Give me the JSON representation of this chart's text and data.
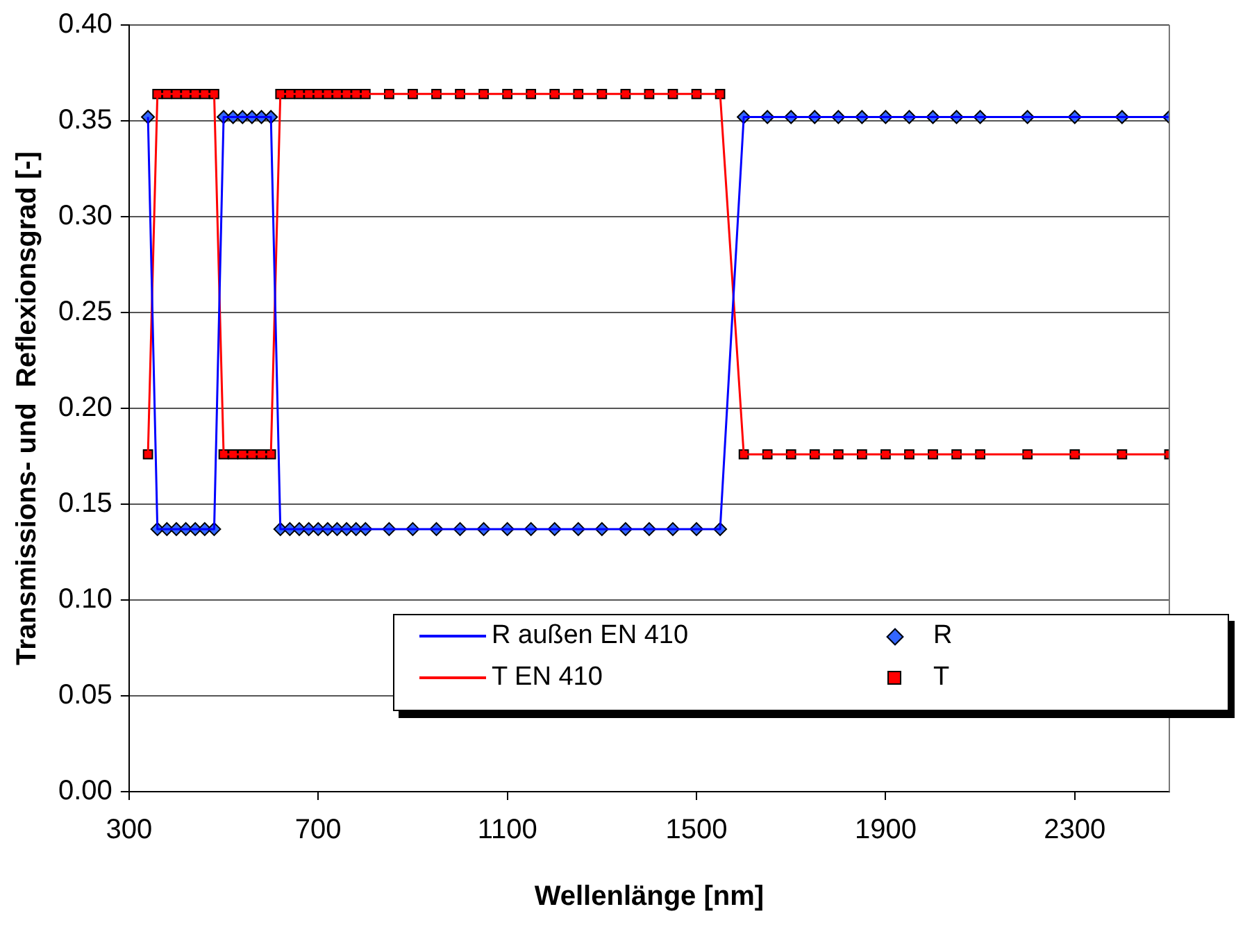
{
  "chart_data": {
    "type": "line",
    "xlabel": "Wellenlänge [nm]",
    "ylabel": "Transmissions- und  Reflexionsgrad [-]",
    "x": [
      340,
      360,
      380,
      400,
      420,
      440,
      460,
      480,
      500,
      520,
      540,
      560,
      580,
      600,
      620,
      640,
      660,
      680,
      700,
      720,
      740,
      760,
      780,
      800,
      850,
      900,
      950,
      1000,
      1050,
      1100,
      1150,
      1200,
      1250,
      1300,
      1350,
      1400,
      1450,
      1500,
      1550,
      1600,
      1650,
      1700,
      1750,
      1800,
      1850,
      1900,
      1950,
      2000,
      2050,
      2100,
      2200,
      2300,
      2400,
      2500
    ],
    "series": [
      {
        "name": "R außen EN 410",
        "type": "line",
        "marker": "none",
        "color": "#0000ff",
        "values": [
          0.352,
          0.137,
          0.137,
          0.137,
          0.137,
          0.137,
          0.137,
          0.137,
          0.352,
          0.352,
          0.352,
          0.352,
          0.352,
          0.352,
          0.137,
          0.137,
          0.137,
          0.137,
          0.137,
          0.137,
          0.137,
          0.137,
          0.137,
          0.137,
          0.137,
          0.137,
          0.137,
          0.137,
          0.137,
          0.137,
          0.137,
          0.137,
          0.137,
          0.137,
          0.137,
          0.137,
          0.137,
          0.137,
          0.137,
          0.352,
          0.352,
          0.352,
          0.352,
          0.352,
          0.352,
          0.352,
          0.352,
          0.352,
          0.352,
          0.352,
          0.352,
          0.352,
          0.352,
          0.352
        ]
      },
      {
        "name": "T EN 410",
        "type": "line",
        "marker": "none",
        "color": "#ff0000",
        "values": [
          0.176,
          0.364,
          0.364,
          0.364,
          0.364,
          0.364,
          0.364,
          0.364,
          0.176,
          0.176,
          0.176,
          0.176,
          0.176,
          0.176,
          0.364,
          0.364,
          0.364,
          0.364,
          0.364,
          0.364,
          0.364,
          0.364,
          0.364,
          0.364,
          0.364,
          0.364,
          0.364,
          0.364,
          0.364,
          0.364,
          0.364,
          0.364,
          0.364,
          0.364,
          0.364,
          0.364,
          0.364,
          0.364,
          0.364,
          0.176,
          0.176,
          0.176,
          0.176,
          0.176,
          0.176,
          0.176,
          0.176,
          0.176,
          0.176,
          0.176,
          0.176,
          0.176,
          0.176,
          0.176
        ]
      },
      {
        "name": "R",
        "type": "scatter",
        "marker": "diamond",
        "color": "#3366ff",
        "values": [
          0.352,
          0.137,
          0.137,
          0.137,
          0.137,
          0.137,
          0.137,
          0.137,
          0.352,
          0.352,
          0.352,
          0.352,
          0.352,
          0.352,
          0.137,
          0.137,
          0.137,
          0.137,
          0.137,
          0.137,
          0.137,
          0.137,
          0.137,
          0.137,
          0.137,
          0.137,
          0.137,
          0.137,
          0.137,
          0.137,
          0.137,
          0.137,
          0.137,
          0.137,
          0.137,
          0.137,
          0.137,
          0.137,
          0.137,
          0.352,
          0.352,
          0.352,
          0.352,
          0.352,
          0.352,
          0.352,
          0.352,
          0.352,
          0.352,
          0.352,
          0.352,
          0.352,
          0.352,
          0.352
        ]
      },
      {
        "name": "T",
        "type": "scatter",
        "marker": "square",
        "color": "#ff0000",
        "values": [
          0.176,
          0.364,
          0.364,
          0.364,
          0.364,
          0.364,
          0.364,
          0.364,
          0.176,
          0.176,
          0.176,
          0.176,
          0.176,
          0.176,
          0.364,
          0.364,
          0.364,
          0.364,
          0.364,
          0.364,
          0.364,
          0.364,
          0.364,
          0.364,
          0.364,
          0.364,
          0.364,
          0.364,
          0.364,
          0.364,
          0.364,
          0.364,
          0.364,
          0.364,
          0.364,
          0.364,
          0.364,
          0.364,
          0.364,
          0.176,
          0.176,
          0.176,
          0.176,
          0.176,
          0.176,
          0.176,
          0.176,
          0.176,
          0.176,
          0.176,
          0.176,
          0.176,
          0.176,
          0.176
        ]
      }
    ],
    "xlim": [
      300,
      2500
    ],
    "xticks": [
      300,
      700,
      1100,
      1500,
      1900,
      2300
    ],
    "ylim": [
      0,
      0.4
    ],
    "yticks": [
      {
        "value": 0,
        "label": "0.00"
      },
      {
        "value": 0.05,
        "label": "0.05"
      },
      {
        "value": 0.1,
        "label": "0.10"
      },
      {
        "value": 0.15,
        "label": "0.15"
      },
      {
        "value": 0.2,
        "label": "0.20"
      },
      {
        "value": 0.25,
        "label": "0.25"
      },
      {
        "value": 0.3,
        "label": "0.30"
      },
      {
        "value": 0.35,
        "label": "0.35"
      },
      {
        "value": 0.4,
        "label": "0.40"
      }
    ],
    "grid": "y",
    "legend": "bottom right"
  }
}
